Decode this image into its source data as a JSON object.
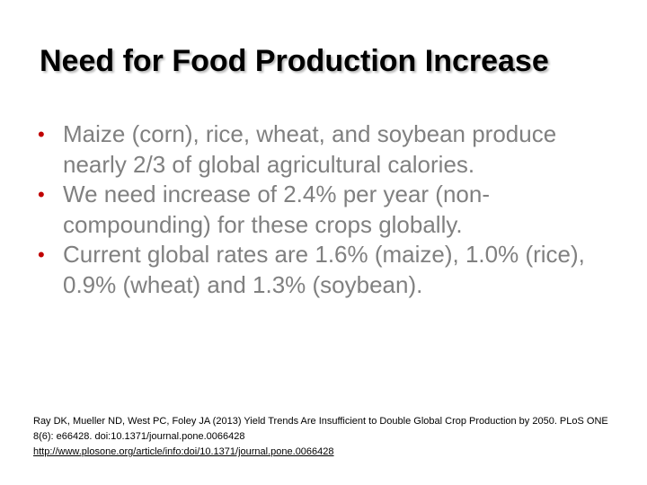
{
  "slide": {
    "title": "Need for Food Production Increase",
    "bullets": [
      "Maize (corn), rice, wheat, and soybean produce nearly 2/3 of global agricultural calories.",
      "We need increase of 2.4% per year (non-compounding) for these crops globally.",
      "Current global rates are 1.6% (maize), 1.0% (rice), 0.9% (wheat) and 1.3% (soybean)."
    ],
    "bullet_glyph": "•",
    "citation": {
      "text": "Ray DK, Mueller ND, West PC, Foley JA (2013) Yield Trends Are Insufficient to Double Global Crop Production by 2050. PLoS ONE 8(6): e66428. doi:10.1371/journal.pone.0066428",
      "link": "http://www.plosone.org/article/info:doi/10.1371/journal.pone.0066428"
    },
    "colors": {
      "title": "#000000",
      "body_text": "#808080",
      "bullet": "#c00000",
      "citation": "#000000"
    }
  }
}
